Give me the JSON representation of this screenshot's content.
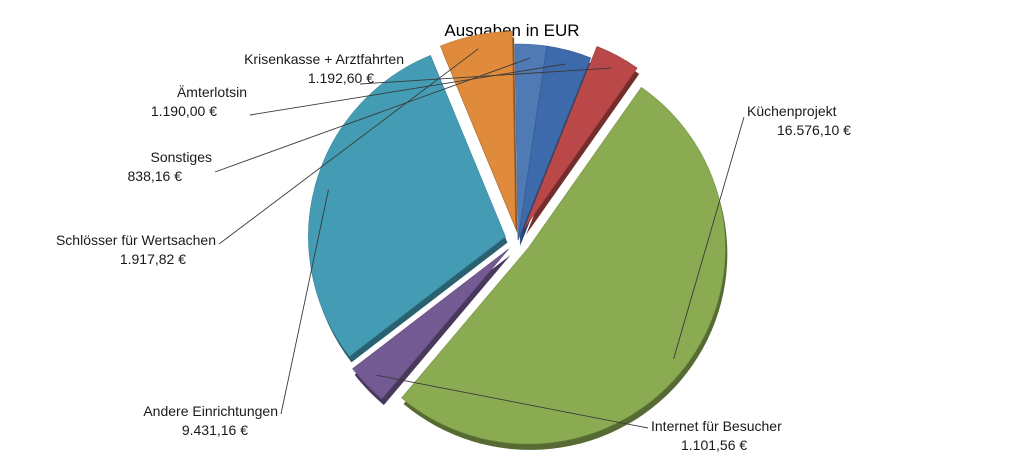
{
  "chart_data": {
    "type": "pie",
    "title": "Ausgaben in EUR",
    "slices": [
      {
        "name": "Küchenprojekt",
        "value": 16576.1,
        "value_label": "16.576,10 €",
        "color": "#8BAB52",
        "exploded": true
      },
      {
        "name": "Internet für Besucher",
        "value": 1101.56,
        "value_label": "1.101,56 €",
        "color": "#745A92",
        "exploded": true
      },
      {
        "name": "Andere Einrichtungen",
        "value": 9431.16,
        "value_label": "9.431,16 €",
        "color": "#439CB4",
        "exploded": true
      },
      {
        "name": "Schlösser für Wertsachen",
        "value": 1917.82,
        "value_label": "1.917,82 €",
        "color": "#E08A3C",
        "exploded": true
      },
      {
        "name": "Sonstiges",
        "value": 838.16,
        "value_label": "838,16 €",
        "color": "#4F7AB4",
        "exploded": false
      },
      {
        "name": "Ämterlotsin",
        "value": 1190.0,
        "value_label": "1.190,00 €",
        "color": "#3D6AAB",
        "exploded": false
      },
      {
        "name": "Krisenkasse + Arztfahrten",
        "value": 1192.6,
        "value_label": "1.192,60 €",
        "color": "#BA4848",
        "exploded": true
      }
    ],
    "legend": "none",
    "style": "3d-exploded"
  }
}
